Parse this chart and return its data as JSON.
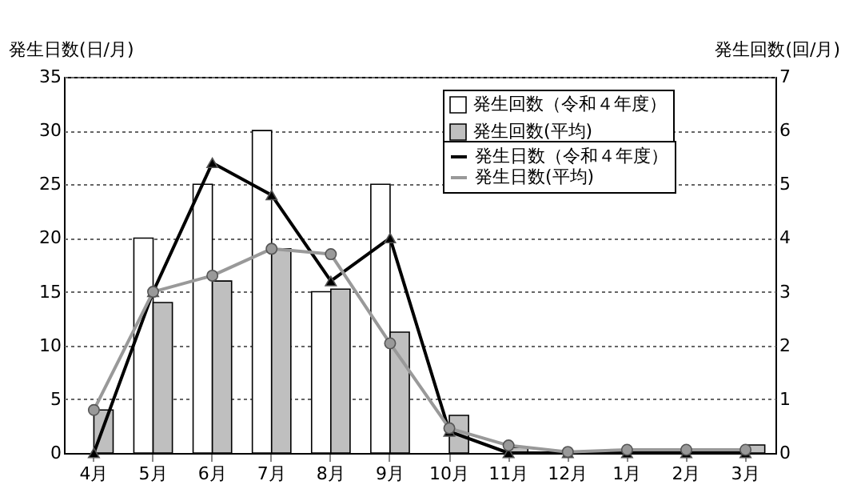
{
  "chart_data": {
    "type": "bar",
    "categories": [
      "4月",
      "5月",
      "6月",
      "7月",
      "8月",
      "9月",
      "10月",
      "11月",
      "12月",
      "1月",
      "2月",
      "3月"
    ],
    "ylabel": "発生日数(日/月)",
    "y2label": "発生回数(回/月)",
    "ylim": [
      0,
      35
    ],
    "yticks": [
      0,
      5,
      10,
      15,
      20,
      25,
      30,
      35
    ],
    "y2lim": [
      0,
      7
    ],
    "y2ticks": [
      0,
      1,
      2,
      3,
      4,
      5,
      6,
      7
    ],
    "grid": "y",
    "legend": "top right",
    "series": [
      {
        "name": "発生回数（令和４年度）",
        "axis": "y2",
        "color": "#ffffff",
        "values": [
          0,
          4,
          5,
          6,
          3,
          5,
          0,
          0,
          0,
          0,
          0,
          0
        ]
      },
      {
        "name": "発生回数(平均)",
        "axis": "y2",
        "color": "#bfbfbf",
        "values": [
          0.8,
          2.8,
          3.2,
          3.8,
          3.05,
          2.25,
          0.7,
          0.1,
          0,
          null,
          null,
          0.15
        ]
      },
      {
        "name": "発生日数（令和４年度）",
        "type": "line",
        "color": "#000000",
        "marker": "triangle",
        "values": [
          0,
          15,
          27,
          24,
          16,
          20,
          2,
          0,
          0,
          0,
          0,
          0
        ]
      },
      {
        "name": "発生日数(平均)",
        "type": "line",
        "color": "#999999",
        "marker": "circle",
        "values": [
          4,
          15,
          16.5,
          19,
          18.5,
          10.2,
          2.3,
          0.7,
          0.1,
          0.3,
          0.3,
          0.3
        ]
      }
    ]
  }
}
